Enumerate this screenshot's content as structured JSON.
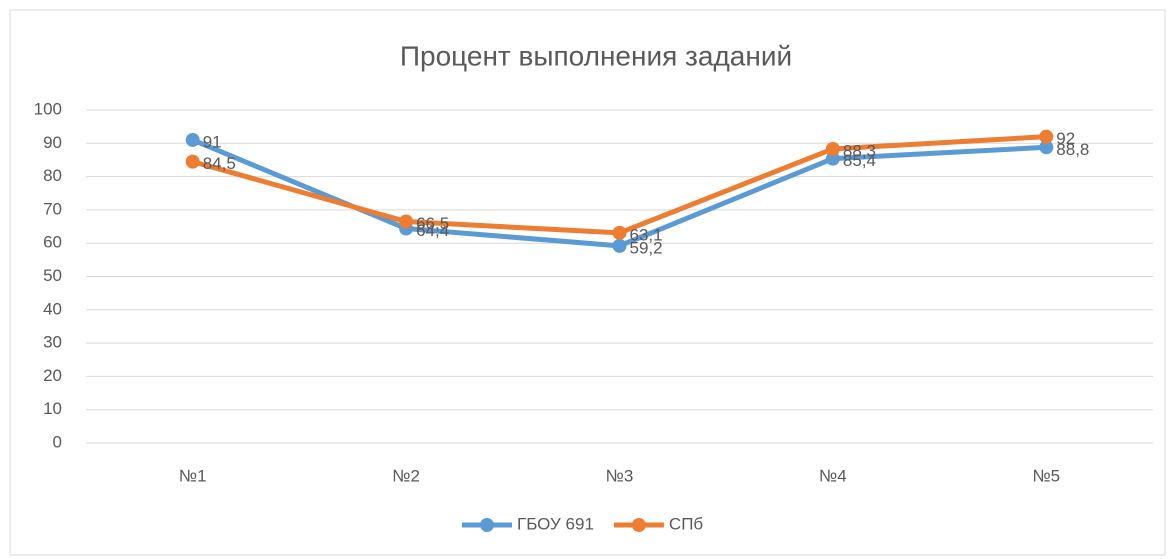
{
  "chart_data": {
    "type": "line",
    "title": "Процент выполнения заданий",
    "categories": [
      "№1",
      "№2",
      "№3",
      "№4",
      "№5"
    ],
    "series": [
      {
        "name": "ГБОУ 691",
        "color": "#5b9bd5",
        "values": [
          91,
          64.4,
          59.2,
          85.4,
          88.8
        ],
        "value_labels": [
          "91",
          "64,4",
          "59,2",
          "85,4",
          "88,8"
        ]
      },
      {
        "name": "СПб",
        "color": "#ed7d31",
        "values": [
          84.5,
          66.5,
          63.1,
          88.3,
          92
        ],
        "value_labels": [
          "84,5",
          "66,5",
          "63,1",
          "88,3",
          "92"
        ]
      }
    ],
    "ylim": [
      0,
      100
    ],
    "yticks": [
      0,
      10,
      20,
      30,
      40,
      50,
      60,
      70,
      80,
      90,
      100
    ],
    "grid": true,
    "legend": "bottom"
  }
}
